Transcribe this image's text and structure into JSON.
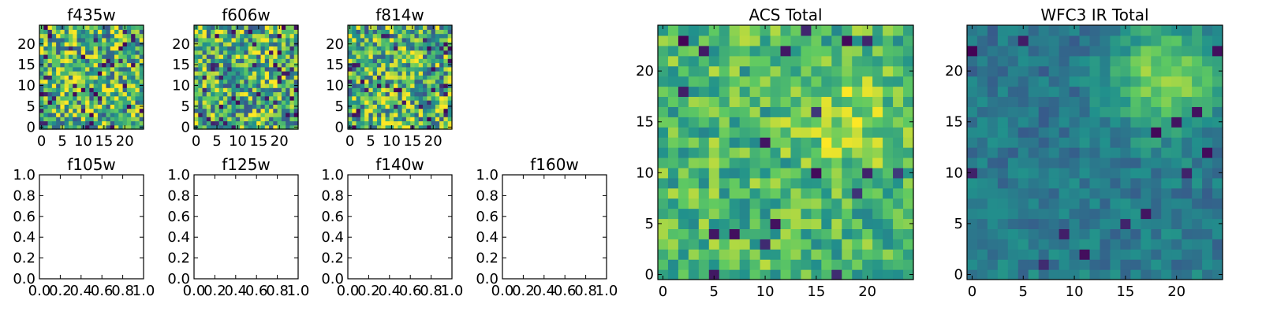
{
  "figure": {
    "background": "#ffffff"
  },
  "colormap": {
    "name": "viridis",
    "stops": [
      "#440154",
      "#3b528b",
      "#21918c",
      "#5ec962",
      "#fde725"
    ]
  },
  "chart_data": [
    {
      "type": "heatmap",
      "title": "f435w",
      "grid_size": 25,
      "xlim": [
        -0.5,
        24.5
      ],
      "ylim": [
        -0.5,
        24.5
      ],
      "xticks": [
        0,
        5,
        10,
        15,
        20
      ],
      "yticks": [
        0,
        5,
        10,
        15,
        20
      ],
      "pattern": "noisy",
      "seed": 11,
      "grid": false
    },
    {
      "type": "heatmap",
      "title": "f606w",
      "grid_size": 25,
      "xlim": [
        -0.5,
        24.5
      ],
      "ylim": [
        -0.5,
        24.5
      ],
      "xticks": [
        0,
        5,
        10,
        15,
        20
      ],
      "yticks": [
        0,
        5,
        10,
        15,
        20
      ],
      "pattern": "noisy",
      "seed": 23,
      "grid": false
    },
    {
      "type": "heatmap",
      "title": "f814w",
      "grid_size": 25,
      "xlim": [
        -0.5,
        24.5
      ],
      "ylim": [
        -0.5,
        24.5
      ],
      "xticks": [
        0,
        5,
        10,
        15,
        20
      ],
      "yticks": [
        0,
        5,
        10,
        15,
        20
      ],
      "pattern": "noisy",
      "seed": 37,
      "grid": false
    },
    {
      "type": "empty",
      "title": "f105w",
      "xlim": [
        0,
        1
      ],
      "ylim": [
        0,
        1
      ],
      "xticks": [
        "0.0",
        "0.2",
        "0.4",
        "0.6",
        "0.8",
        "1.0"
      ],
      "yticks": [
        "0.0",
        "0.2",
        "0.4",
        "0.6",
        "0.8",
        "1.0"
      ],
      "grid": false
    },
    {
      "type": "empty",
      "title": "f125w",
      "xlim": [
        0,
        1
      ],
      "ylim": [
        0,
        1
      ],
      "xticks": [
        "0.0",
        "0.2",
        "0.4",
        "0.6",
        "0.8",
        "1.0"
      ],
      "yticks": [
        "0.0",
        "0.2",
        "0.4",
        "0.6",
        "0.8",
        "1.0"
      ],
      "grid": false
    },
    {
      "type": "empty",
      "title": "f140w",
      "xlim": [
        0,
        1
      ],
      "ylim": [
        0,
        1
      ],
      "xticks": [
        "0.0",
        "0.2",
        "0.4",
        "0.6",
        "0.8",
        "1.0"
      ],
      "yticks": [
        "0.0",
        "0.2",
        "0.4",
        "0.6",
        "0.8",
        "1.0"
      ],
      "grid": false
    },
    {
      "type": "empty",
      "title": "f160w",
      "xlim": [
        0,
        1
      ],
      "ylim": [
        0,
        1
      ],
      "xticks": [
        "0.0",
        "0.2",
        "0.4",
        "0.6",
        "0.8",
        "1.0"
      ],
      "yticks": [
        "0.0",
        "0.2",
        "0.4",
        "0.6",
        "0.8",
        "1.0"
      ],
      "grid": false
    },
    {
      "type": "heatmap",
      "title": "ACS Total",
      "grid_size": 25,
      "xlim": [
        -0.5,
        24.5
      ],
      "ylim": [
        -0.5,
        24.5
      ],
      "xticks": [
        0,
        5,
        10,
        15,
        20
      ],
      "yticks": [
        0,
        5,
        10,
        15,
        20
      ],
      "pattern": "acs",
      "seed": 53,
      "grid": false
    },
    {
      "type": "heatmap",
      "title": "WFC3 IR Total",
      "grid_size": 25,
      "xlim": [
        -0.5,
        24.5
      ],
      "ylim": [
        -0.5,
        24.5
      ],
      "xticks": [
        0,
        5,
        10,
        15,
        20
      ],
      "yticks": [
        0,
        5,
        10,
        15,
        20
      ],
      "pattern": "ir",
      "seed": 71,
      "grid": false
    }
  ]
}
